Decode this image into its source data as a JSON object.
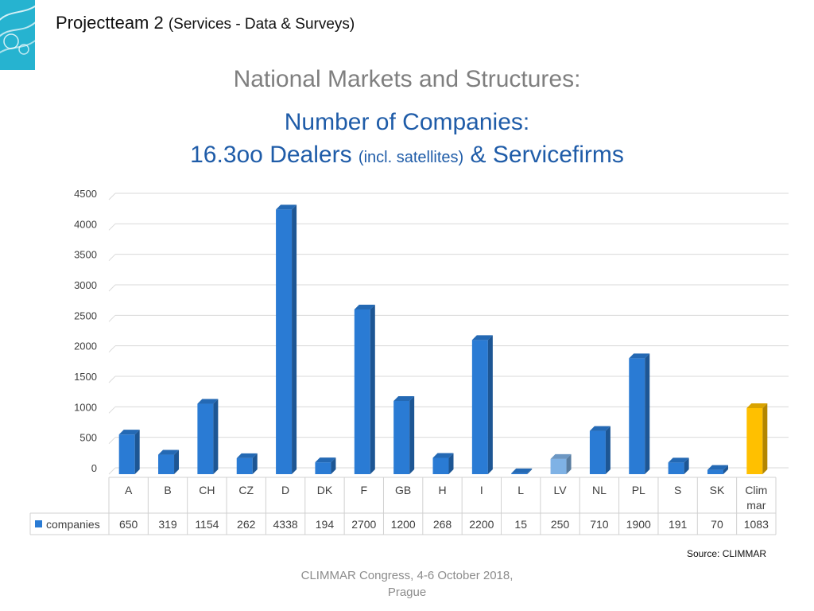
{
  "header": {
    "title": "Projectteam 2",
    "subtitle": "(Services - Data & Surveys)"
  },
  "heading": {
    "line1": "National Markets and Structures:",
    "line2": "Number of Companies:",
    "line3_main": "16.3oo Dealers",
    "line3_small": "(incl. satellites)",
    "line3_end": "& Servicefirms"
  },
  "chart_data": {
    "type": "bar",
    "title": "",
    "xlabel": "",
    "ylabel": "",
    "ylim": [
      0,
      4500
    ],
    "yticks": [
      0,
      500,
      1000,
      1500,
      2000,
      2500,
      3000,
      3500,
      4000,
      4500
    ],
    "grid": true,
    "legend": "data-table-left",
    "categories": [
      "A",
      "B",
      "CH",
      "CZ",
      "D",
      "DK",
      "F",
      "GB",
      "H",
      "I",
      "L",
      "LV",
      "NL",
      "PL",
      "S",
      "SK",
      "Clim mar"
    ],
    "category_lines": [
      [
        "A"
      ],
      [
        "B"
      ],
      [
        "CH"
      ],
      [
        "CZ"
      ],
      [
        "D"
      ],
      [
        "DK"
      ],
      [
        "F"
      ],
      [
        "GB"
      ],
      [
        "H"
      ],
      [
        "I"
      ],
      [
        "L"
      ],
      [
        "LV"
      ],
      [
        "NL"
      ],
      [
        "PL"
      ],
      [
        "S"
      ],
      [
        "SK"
      ],
      [
        "Clim",
        "mar"
      ]
    ],
    "series": [
      {
        "name": "companies",
        "values": [
          650,
          319,
          1154,
          262,
          4338,
          194,
          2700,
          1200,
          268,
          2200,
          15,
          250,
          710,
          1900,
          191,
          70,
          1083
        ]
      }
    ],
    "colors": {
      "default": "#2a7bd4",
      "LV": "#7fb2e5",
      "Clim mar": "#ffc000"
    }
  },
  "source": "Source: CLIMMAR",
  "footer": {
    "line1": "CLIMMAR Congress, 4-6 October 2018,",
    "line2": "Prague"
  }
}
